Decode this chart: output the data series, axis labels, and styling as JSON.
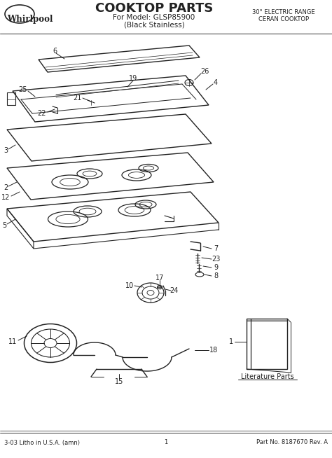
{
  "title": "COOKTOP PARTS",
  "subtitle1": "For Model: GLSP85900",
  "subtitle2": "(Black Stainless)",
  "top_right1": "30° ELECTRIC RANGE",
  "top_right2": "CERAN COOKTOP",
  "whirlpool_text": "Whirlpool",
  "footer_left": "3-03 Litho in U.S.A. (amn)",
  "footer_center": "1",
  "footer_right": "Part No. 8187670 Rev. A",
  "literature_parts": "Literature Parts",
  "bg_color": "#ffffff",
  "line_color": "#222222",
  "part_numbers": [
    1,
    2,
    3,
    4,
    5,
    6,
    7,
    8,
    9,
    10,
    11,
    12,
    15,
    17,
    18,
    19,
    21,
    22,
    23,
    24,
    25,
    26
  ]
}
